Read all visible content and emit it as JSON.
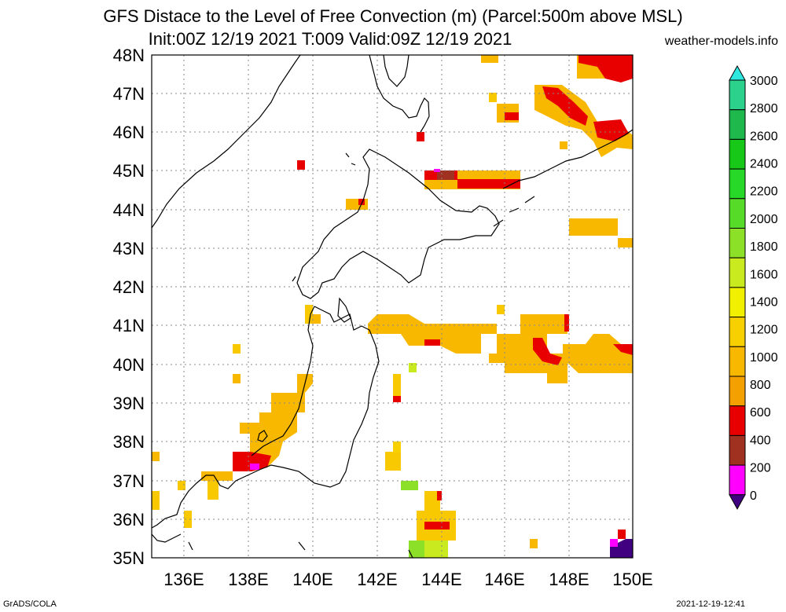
{
  "header": {
    "title_line1": "GFS Distace to the Level of Free Convection (m) (Parcel:500m above MSL)",
    "title_line2": "Init:00Z 12/19 2021 T:009 Valid:09Z 12/19 2021",
    "site": "weather-models.info"
  },
  "footer": {
    "left": "GrADS/COLA",
    "right": "2021-12-19-12:41"
  },
  "map": {
    "lat_range": [
      35,
      48
    ],
    "lon_range": [
      135,
      150
    ],
    "lat_labels": [
      "48N",
      "47N",
      "46N",
      "45N",
      "44N",
      "43N",
      "42N",
      "41N",
      "40N",
      "39N",
      "38N",
      "37N",
      "36N",
      "35N"
    ],
    "lon_labels": [
      "136E",
      "138E",
      "140E",
      "142E",
      "144E",
      "146E",
      "148E",
      "150E"
    ]
  },
  "colorbar": {
    "labels": [
      "3000",
      "2800",
      "2600",
      "2400",
      "2200",
      "2000",
      "1800",
      "1600",
      "1400",
      "1200",
      "1000",
      "800",
      "600",
      "400",
      "200",
      "0"
    ],
    "colors": [
      "#2ee8e0",
      "#2cd28c",
      "#1eb84c",
      "#18c818",
      "#28d828",
      "#56dc28",
      "#8ce028",
      "#c8ea1e",
      "#f0f000",
      "#f8d000",
      "#f8b800",
      "#f4a000",
      "#e80000",
      "#a03020",
      "#ff00ff",
      "#400080"
    ]
  }
}
